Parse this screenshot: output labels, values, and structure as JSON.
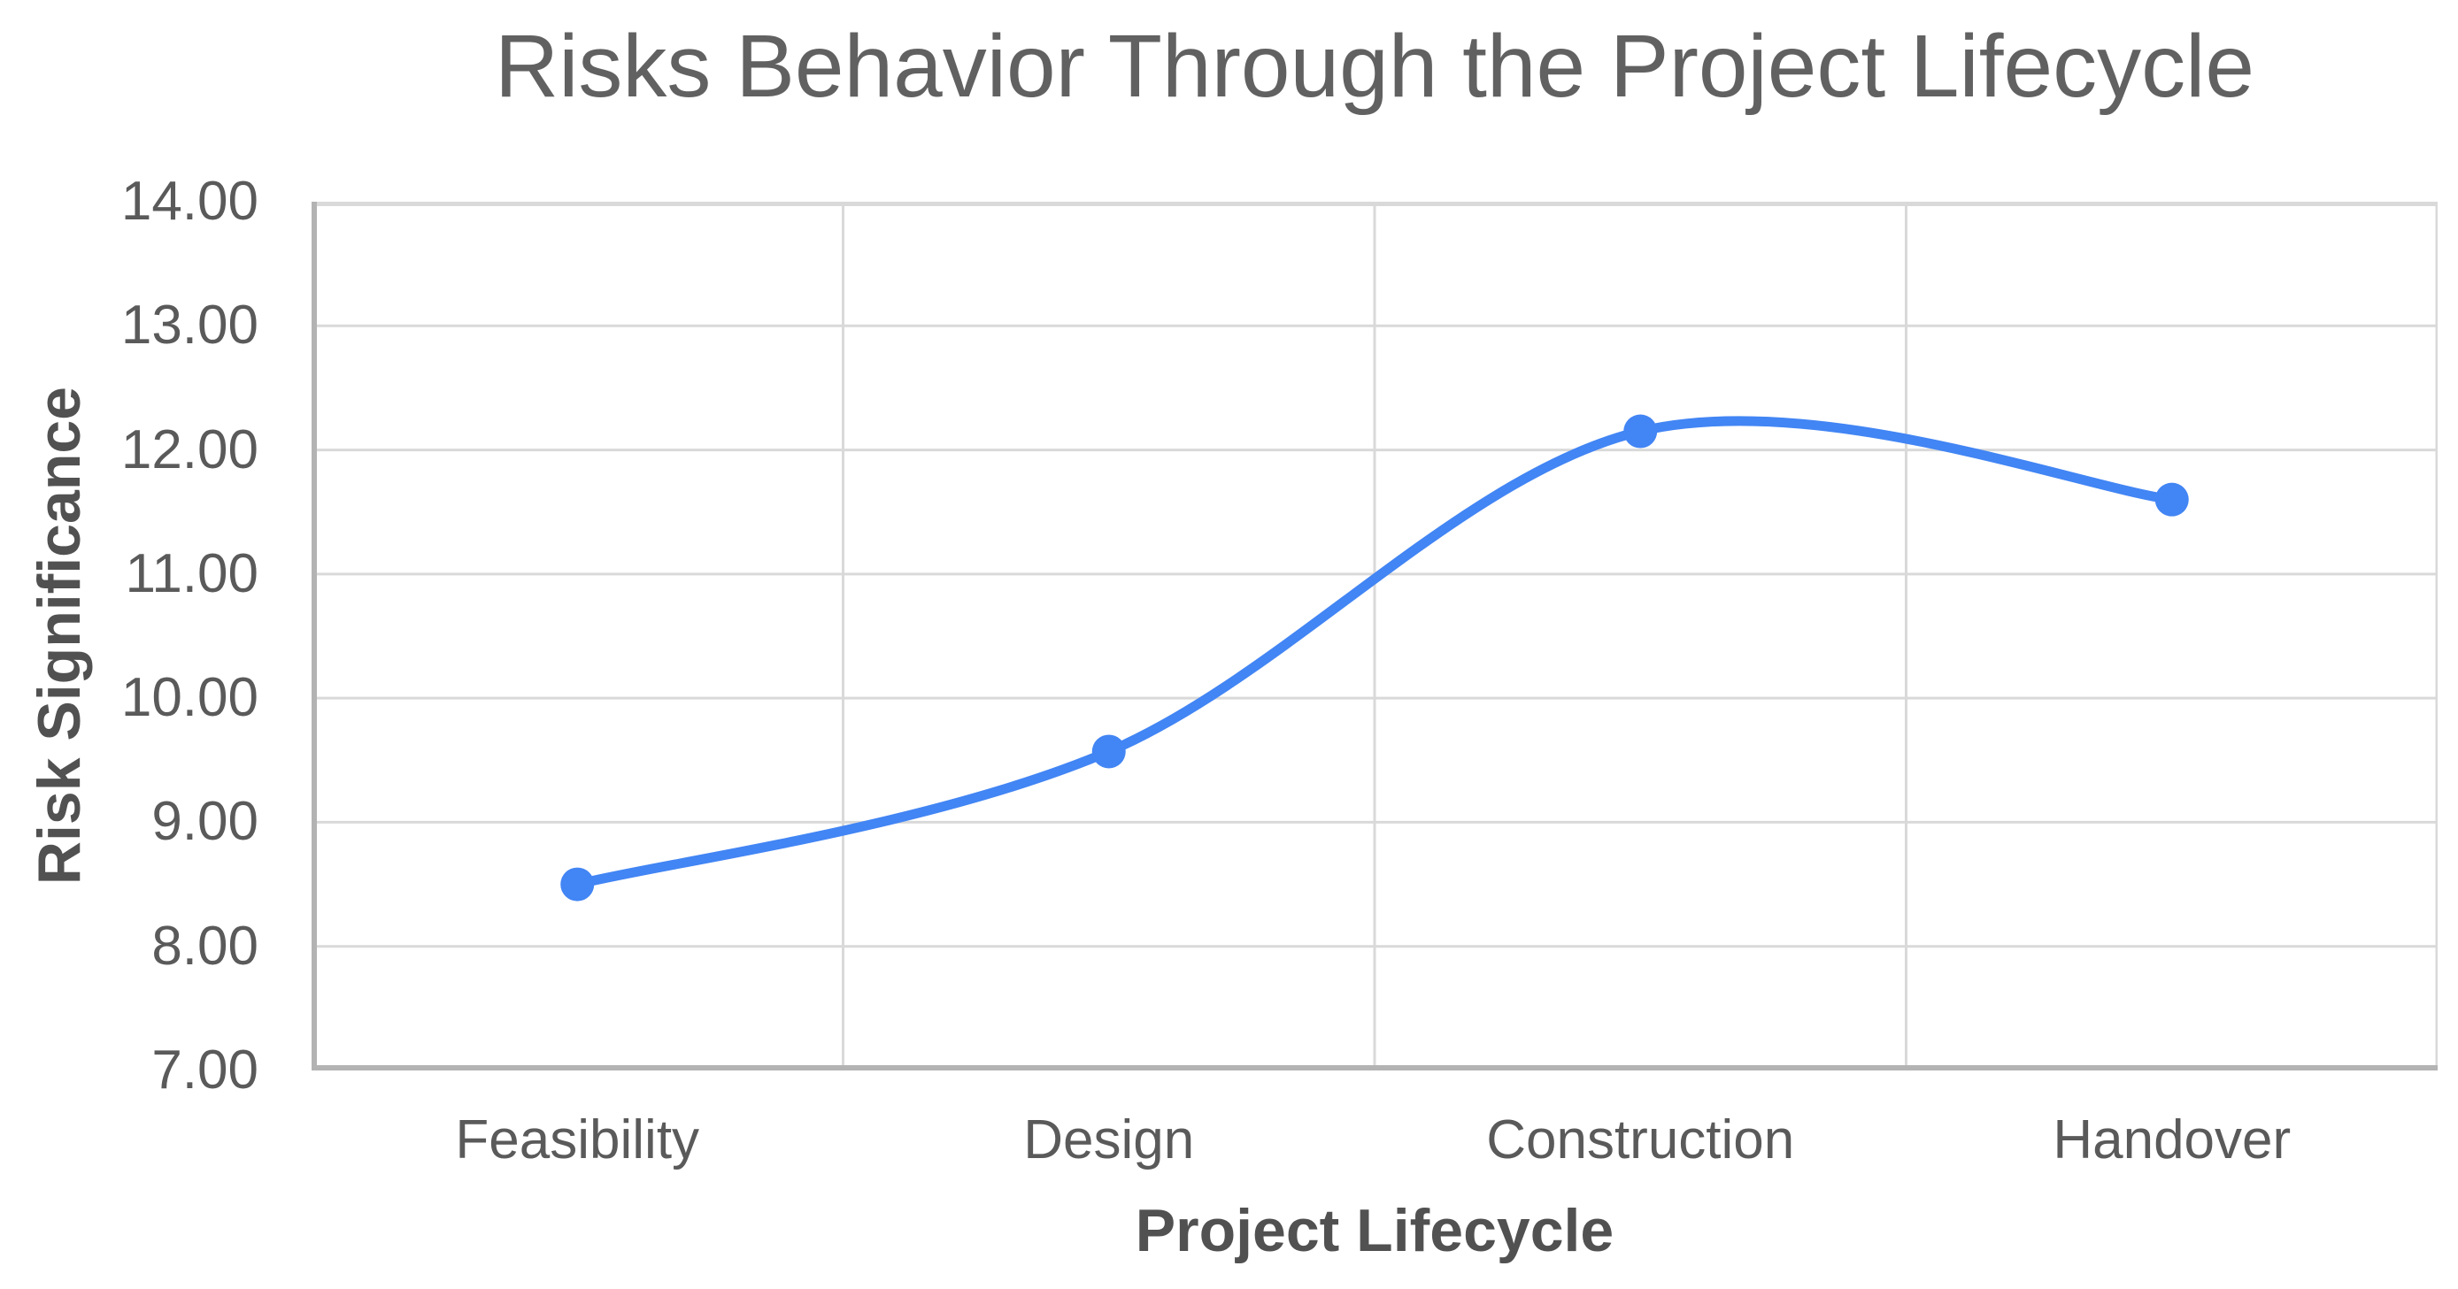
{
  "chart_data": {
    "type": "line",
    "title": "Risks Behavior Through the Project Lifecycle",
    "xlabel": "Project Lifecycle",
    "ylabel": "Risk Significance",
    "categories": [
      "Feasibility",
      "Design",
      "Construction",
      "Handover"
    ],
    "series": [
      {
        "name": "Risk Significance",
        "values": [
          8.5,
          9.57,
          12.15,
          11.6
        ]
      }
    ],
    "ylim": [
      7,
      14
    ],
    "y_tick_step": 1,
    "y_tick_labels": [
      "14.00",
      "13.00",
      "12.00",
      "11.00",
      "10.00",
      "9.00",
      "8.00",
      "7.00"
    ],
    "grid": "on",
    "legend": "none",
    "line_style": "smooth",
    "marker": "circle",
    "colors": {
      "line": "#4285f4",
      "gridline": "#d9d9d9",
      "axis_line": "#b3b3b3",
      "title_text": "#616161",
      "tick_text": "#5a5a5a",
      "axis_title_text": "#515151",
      "background": "#ffffff"
    }
  }
}
